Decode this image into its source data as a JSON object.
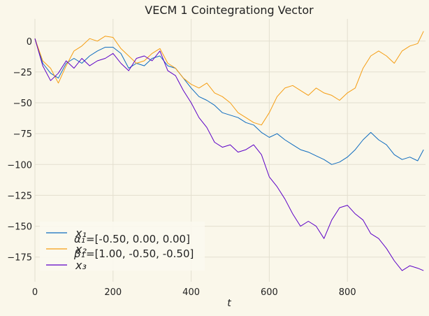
{
  "chart_data": {
    "type": "line",
    "title": "VECM 1 Cointegrationg Vector",
    "xlabel": "t",
    "ylabel": "",
    "xlim": [
      0,
      1000
    ],
    "ylim": [
      -195,
      18
    ],
    "x_ticks": [
      0,
      200,
      400,
      600,
      800
    ],
    "y_ticks": [
      0,
      -25,
      -50,
      -75,
      -100,
      -125,
      -150,
      -175
    ],
    "x_tick_labels": [
      "0",
      "200",
      "400",
      "600",
      "800"
    ],
    "y_tick_labels": [
      "0",
      "−25",
      "−50",
      "−75",
      "−100",
      "−125",
      "−150",
      "−175"
    ],
    "grid": true,
    "legend_position": "lower-left",
    "annotations": [
      {
        "symbol": "α₁",
        "text": "=[-0.50, 0.00, 0.00]"
      },
      {
        "symbol": "β₁",
        "text": "=[1.00, -0.50, -0.50]"
      }
    ],
    "series": [
      {
        "name": "x₁",
        "color": "#0d6bbf",
        "x": [
          0,
          20,
          40,
          60,
          80,
          100,
          120,
          140,
          160,
          180,
          200,
          220,
          240,
          260,
          280,
          300,
          320,
          340,
          360,
          380,
          400,
          420,
          440,
          460,
          480,
          500,
          520,
          540,
          560,
          580,
          600,
          620,
          640,
          660,
          680,
          700,
          720,
          740,
          760,
          780,
          800,
          820,
          840,
          860,
          880,
          900,
          920,
          940,
          960,
          980,
          995
        ],
        "values": [
          2,
          -18,
          -26,
          -30,
          -18,
          -14,
          -18,
          -12,
          -8,
          -5,
          -5,
          -10,
          -22,
          -18,
          -20,
          -14,
          -12,
          -20,
          -22,
          -30,
          -38,
          -45,
          -48,
          -52,
          -58,
          -60,
          -62,
          -66,
          -68,
          -74,
          -78,
          -75,
          -80,
          -84,
          -88,
          -90,
          -93,
          -96,
          -100,
          -98,
          -94,
          -88,
          -80,
          -74,
          -80,
          -84,
          -92,
          -96,
          -94,
          -97,
          -88
        ]
      },
      {
        "name": "x₂",
        "color": "#f59d12",
        "x": [
          0,
          20,
          40,
          60,
          80,
          100,
          120,
          140,
          160,
          180,
          200,
          220,
          240,
          260,
          280,
          300,
          320,
          340,
          360,
          380,
          400,
          420,
          440,
          460,
          480,
          500,
          520,
          540,
          560,
          580,
          600,
          620,
          640,
          660,
          680,
          700,
          720,
          740,
          760,
          780,
          800,
          820,
          840,
          860,
          880,
          900,
          920,
          940,
          960,
          980,
          995
        ],
        "values": [
          2,
          -16,
          -22,
          -34,
          -20,
          -8,
          -4,
          2,
          0,
          4,
          3,
          -6,
          -12,
          -18,
          -16,
          -10,
          -6,
          -18,
          -22,
          -30,
          -35,
          -38,
          -34,
          -42,
          -45,
          -50,
          -58,
          -62,
          -66,
          -68,
          -58,
          -45,
          -38,
          -36,
          -40,
          -44,
          -38,
          -42,
          -44,
          -48,
          -42,
          -38,
          -22,
          -12,
          -8,
          -12,
          -18,
          -8,
          -4,
          -2,
          8
        ]
      },
      {
        "name": "x₃",
        "color": "#5c00c7",
        "x": [
          0,
          20,
          40,
          60,
          80,
          100,
          120,
          140,
          160,
          180,
          200,
          220,
          240,
          260,
          280,
          300,
          320,
          340,
          360,
          380,
          400,
          420,
          440,
          460,
          480,
          500,
          520,
          540,
          560,
          580,
          600,
          620,
          640,
          660,
          680,
          700,
          720,
          740,
          760,
          780,
          800,
          820,
          840,
          860,
          880,
          900,
          920,
          940,
          960,
          980,
          995
        ],
        "values": [
          2,
          -20,
          -32,
          -26,
          -16,
          -22,
          -14,
          -20,
          -16,
          -14,
          -10,
          -18,
          -24,
          -14,
          -12,
          -16,
          -8,
          -24,
          -28,
          -40,
          -50,
          -62,
          -70,
          -82,
          -86,
          -84,
          -90,
          -88,
          -84,
          -92,
          -110,
          -118,
          -128,
          -140,
          -150,
          -146,
          -150,
          -160,
          -145,
          -135,
          -133,
          -140,
          -145,
          -156,
          -160,
          -168,
          -178,
          -186,
          -182,
          -184,
          -186
        ]
      }
    ]
  }
}
